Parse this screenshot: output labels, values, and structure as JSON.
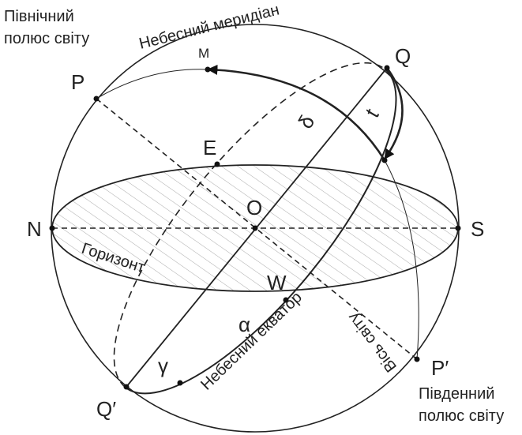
{
  "labels": {
    "north_pole_1": "Північний",
    "north_pole_2": "полюс світу",
    "meridian": "Небесний меридіан",
    "M": "M",
    "Q": "Q",
    "P": "P",
    "t": "t",
    "delta": "δ",
    "E": "E",
    "O": "O",
    "N": "N",
    "S": "S",
    "horizon": "Горизонт",
    "W": "W",
    "equator": "Небесний екватор",
    "alpha": "α",
    "gamma": "γ",
    "axis": "Вісь світу",
    "P_prime": "P′",
    "Q_prime": "Q′",
    "south_pole_1": "Південний",
    "south_pole_2": "полюс світу"
  }
}
